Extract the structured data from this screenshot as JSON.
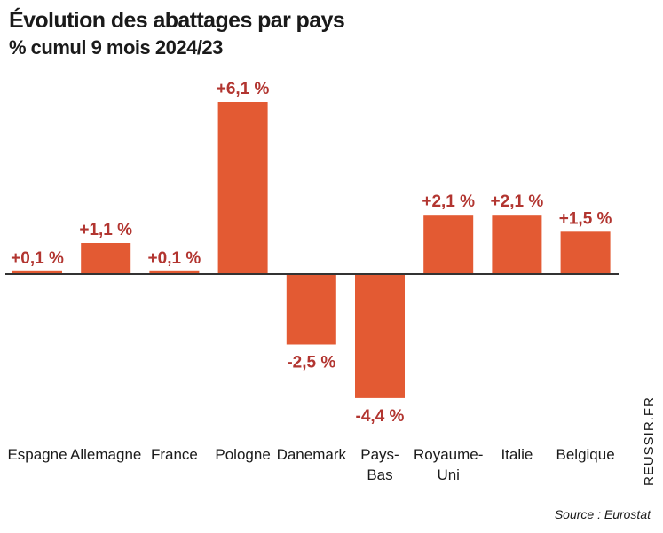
{
  "chart_data": {
    "type": "bar",
    "title": "Évolution des abattages par pays",
    "subtitle": "% cumul 9 mois 2024/23",
    "categories": [
      [
        "Espagne"
      ],
      [
        "Allemagne"
      ],
      [
        "France"
      ],
      [
        "Pologne"
      ],
      [
        "Danemark"
      ],
      [
        "Pays-",
        "Bas"
      ],
      [
        "Royaume-",
        "Uni"
      ],
      [
        "Italie"
      ],
      [
        "Belgique"
      ]
    ],
    "values": [
      0.1,
      1.1,
      0.1,
      6.1,
      -2.5,
      -4.4,
      2.1,
      2.1,
      1.5
    ],
    "data_labels": [
      "+0,1 %",
      "+1,1 %",
      "+0,1 %",
      "+6,1 %",
      "-2,5 %",
      "-4,4 %",
      "+2,1 %",
      "+2,1 %",
      "+1,5 %"
    ],
    "unit": "%",
    "xlabel": "",
    "ylabel": "",
    "ylim": [
      -4.4,
      6.1
    ],
    "grid": false,
    "legend": "none"
  },
  "colors": {
    "bar": "#e35a33",
    "label": "#b23530",
    "axis": "#333333",
    "text": "#1a1a1a"
  },
  "source": "Source : Eurostat",
  "watermark": "REUSSIR.FR"
}
